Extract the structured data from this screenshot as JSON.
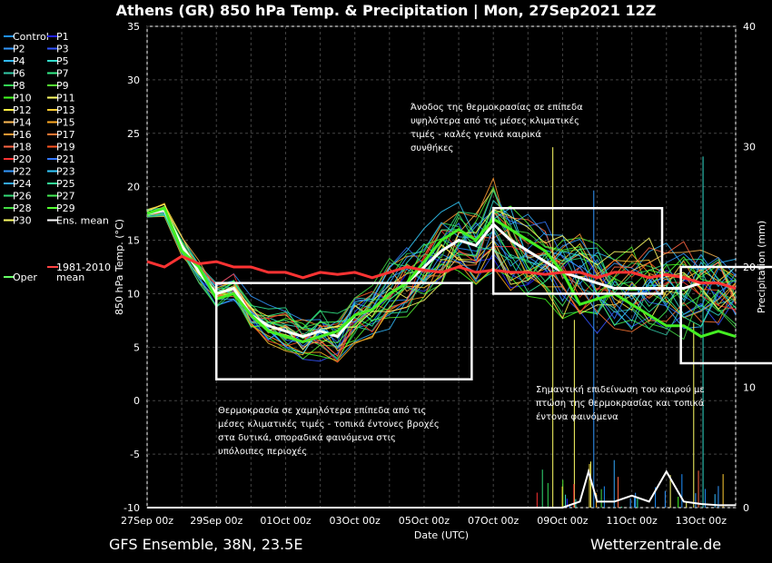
{
  "title": "Athens  (GR)  850 hPa Temp. & Precipitation | Mon, 27Sep2021 12Z",
  "footer_left": "GFS Ensemble, 38N, 23.5E",
  "footer_right": "Wetterzentrale.de",
  "chart_data": {
    "type": "line",
    "xlabel": "Date (UTC)",
    "ylabel": "850 hPa Temp. (°C)",
    "y2label": "Precipitation (mm)",
    "x_ticks": [
      "27Sep 00z",
      "29Sep 00z",
      "01Oct 00z",
      "03Oct 00z",
      "05Oct 00z",
      "07Oct 00z",
      "09Oct 00z",
      "11Oct 00z",
      "13Oct 00z"
    ],
    "x_range_hours": [
      0,
      408
    ],
    "ylim": [
      -10,
      35
    ],
    "y_ticks": [
      -10,
      -5,
      0,
      5,
      10,
      15,
      20,
      25,
      30,
      35
    ],
    "y2lim": [
      0,
      40
    ],
    "y2_ticks": [
      0,
      10,
      20,
      30,
      40
    ],
    "grid": true,
    "legend_position": "left",
    "legend": [
      {
        "name": "Control",
        "color": "#1e90ff"
      },
      {
        "name": "P1",
        "color": "#2222ff"
      },
      {
        "name": "P2",
        "color": "#3399ff"
      },
      {
        "name": "P3",
        "color": "#3355ff"
      },
      {
        "name": "P4",
        "color": "#33bbff"
      },
      {
        "name": "P5",
        "color": "#33ddcc"
      },
      {
        "name": "P6",
        "color": "#33ccaa"
      },
      {
        "name": "P7",
        "color": "#33ee88"
      },
      {
        "name": "P8",
        "color": "#33dd55"
      },
      {
        "name": "P9",
        "color": "#55ee33"
      },
      {
        "name": "P10",
        "color": "#44ff22"
      },
      {
        "name": "P11",
        "color": "#ffff66"
      },
      {
        "name": "P12",
        "color": "#ffee44"
      },
      {
        "name": "P13",
        "color": "#ffcc33"
      },
      {
        "name": "P14",
        "color": "#ffbb55"
      },
      {
        "name": "P15",
        "color": "#ffaa22"
      },
      {
        "name": "P16",
        "color": "#ff9933"
      },
      {
        "name": "P17",
        "color": "#ff7733"
      },
      {
        "name": "P18",
        "color": "#ff6644"
      },
      {
        "name": "P19",
        "color": "#ff5522"
      },
      {
        "name": "P20",
        "color": "#ff3333"
      },
      {
        "name": "P21",
        "color": "#3377ff"
      },
      {
        "name": "P22",
        "color": "#3399ff"
      },
      {
        "name": "P23",
        "color": "#33ccff"
      },
      {
        "name": "P24",
        "color": "#33aaff"
      },
      {
        "name": "P25",
        "color": "#33ee99"
      },
      {
        "name": "P26",
        "color": "#33dd77"
      },
      {
        "name": "P27",
        "color": "#44ee55"
      },
      {
        "name": "P28",
        "color": "#44dd44"
      },
      {
        "name": "P29",
        "color": "#55ff33"
      },
      {
        "name": "P30",
        "color": "#ffff66"
      },
      {
        "name": "Ens. mean",
        "color": "#ffffff"
      },
      {
        "name": "Oper",
        "color": "#66ff66"
      },
      {
        "name": "1981-2010\nmean",
        "color": "#ff4444"
      }
    ],
    "series": [
      {
        "name": "Ens. mean",
        "x_hours": [
          0,
          12,
          24,
          36,
          48,
          60,
          72,
          84,
          96,
          108,
          120,
          132,
          144,
          156,
          168,
          180,
          192,
          204,
          216,
          228,
          240,
          252,
          264,
          276,
          288,
          300,
          312,
          324,
          336,
          348,
          360,
          372,
          384,
          396,
          408
        ],
        "y": [
          17.5,
          17.8,
          14.5,
          12,
          10,
          10.5,
          8,
          7,
          6.5,
          6,
          6.5,
          6,
          8,
          8.5,
          10,
          11,
          12.5,
          14,
          15,
          14.5,
          16.5,
          15,
          14,
          13,
          12,
          11.5,
          11,
          10.5,
          10.5,
          10.5,
          10.5,
          10.5,
          11,
          11,
          10.5
        ]
      },
      {
        "name": "Oper",
        "x_hours": [
          0,
          12,
          24,
          36,
          48,
          60,
          72,
          84,
          96,
          108,
          120,
          132,
          144,
          156,
          168,
          180,
          192,
          204,
          216,
          228,
          240,
          252,
          264,
          276,
          288,
          300,
          312,
          324,
          336,
          348,
          360,
          372,
          384,
          396,
          408
        ],
        "y": [
          17.5,
          18,
          14,
          12.5,
          9.5,
          10,
          8,
          6.5,
          6,
          5.5,
          6,
          6.5,
          8,
          8.5,
          10,
          11,
          13,
          15,
          16,
          15,
          17,
          16,
          15,
          14,
          12,
          9,
          9.5,
          10,
          9,
          8,
          7,
          7,
          6,
          6.5,
          6
        ]
      },
      {
        "name": "1981-2010 mean",
        "x_hours": [
          0,
          12,
          24,
          36,
          48,
          60,
          72,
          84,
          96,
          108,
          120,
          132,
          144,
          156,
          168,
          180,
          192,
          204,
          216,
          228,
          240,
          252,
          264,
          276,
          288,
          300,
          312,
          324,
          336,
          348,
          360,
          372,
          384,
          396,
          408
        ],
        "y": [
          13,
          12.5,
          13.5,
          12.8,
          13,
          12.5,
          12.5,
          12,
          12,
          11.5,
          12,
          11.8,
          12,
          11.5,
          12,
          12.5,
          12.2,
          12,
          12.5,
          12,
          12.2,
          12,
          12,
          11.8,
          12,
          12,
          11.5,
          12,
          12,
          11.5,
          11.8,
          11.5,
          11,
          11,
          10.5
        ]
      },
      {
        "name": "Ens. mean precipitation (mm)",
        "axis": "y2",
        "x_hours": [
          0,
          48,
          96,
          144,
          192,
          240,
          288,
          300,
          306,
          312,
          324,
          336,
          348,
          360,
          372,
          384,
          396,
          408
        ],
        "y": [
          0,
          0,
          0,
          0,
          0,
          0,
          0,
          0.5,
          3,
          0.5,
          0.5,
          1,
          0.5,
          3,
          0.5,
          0.3,
          0.2,
          0.2
        ]
      }
    ],
    "annotations": [
      "Θερμοκρασία σε χαμηλότερα επίπεδα από τις μέσες κλιματικές τιμές - τοπικά έντονες βροχές στα δυτικά, σποραδικά φαινόμενα στις υπόλοιπες περιοχές",
      "Άνοδος της θερμοκρασίας σε επίπεδα υψηλότερα από τις μέσες κλιματικές τιμές - καλές γενικά καιρικά συνθήκες",
      "Σημαντική επιδείνωση του καιρού με πτώση της θερμοκρασίας και τοπικά έντονα φαινόμενα"
    ],
    "annotation_boxes": [
      {
        "hours": [
          48,
          225
        ],
        "temp": [
          2,
          11
        ]
      },
      {
        "hours": [
          240,
          357
        ],
        "temp": [
          10,
          18
        ]
      },
      {
        "hours": [
          370,
          490
        ],
        "temp": [
          3.5,
          12.5
        ]
      }
    ]
  }
}
